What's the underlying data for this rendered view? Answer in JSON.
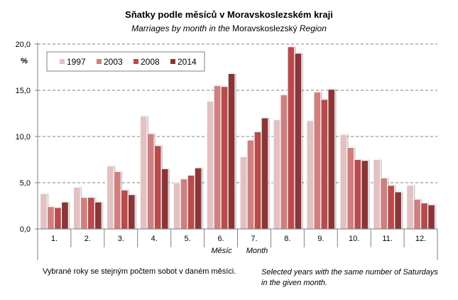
{
  "chart_data": {
    "type": "bar",
    "title": "Sňatky podle měsíců v Moravskoslezském kraji",
    "subtitle_italic": "Marriages by month in the",
    "subtitle_region": "Moravskoslezský",
    "subtitle_tail": "Region",
    "ylabel": "%",
    "xlabel_cz": "Měsíc",
    "xlabel_en": "Month",
    "ylim": [
      0,
      20
    ],
    "yticks": [
      0,
      5,
      10,
      15,
      20
    ],
    "ytick_labels": [
      "0,0",
      "5,0",
      "10,0",
      "15,0",
      "20,0"
    ],
    "grid": "horizontal-dashed",
    "legend_position": "top-left",
    "categories": [
      "1.",
      "2.",
      "3.",
      "4.",
      "5.",
      "6.",
      "7.",
      "8.",
      "9.",
      "10.",
      "11.",
      "12."
    ],
    "series": [
      {
        "name": "1997",
        "color": "#e3c1c3",
        "values": [
          3.8,
          4.5,
          6.8,
          12.2,
          5.0,
          13.8,
          7.8,
          11.8,
          11.7,
          10.2,
          7.5,
          4.7
        ]
      },
      {
        "name": "2003",
        "color": "#cf7f7f",
        "values": [
          2.4,
          3.4,
          6.2,
          10.3,
          5.4,
          15.5,
          9.6,
          14.5,
          14.8,
          8.8,
          5.5,
          3.2
        ]
      },
      {
        "name": "2008",
        "color": "#b84c4b",
        "values": [
          2.3,
          3.4,
          4.2,
          9.0,
          5.8,
          15.4,
          10.5,
          19.7,
          14.0,
          7.5,
          4.7,
          2.8
        ]
      },
      {
        "name": "2014",
        "color": "#8b3438",
        "values": [
          2.9,
          2.9,
          3.7,
          6.5,
          6.6,
          16.8,
          12.0,
          19.0,
          15.1,
          7.4,
          4.0,
          2.6
        ]
      }
    ]
  },
  "notes": {
    "cz": "Vybrané roky se stejným počtem sobot v daném měsíci.",
    "en_line1": "Selected years with the same number of Saturdays",
    "en_line2": "in the given month."
  }
}
